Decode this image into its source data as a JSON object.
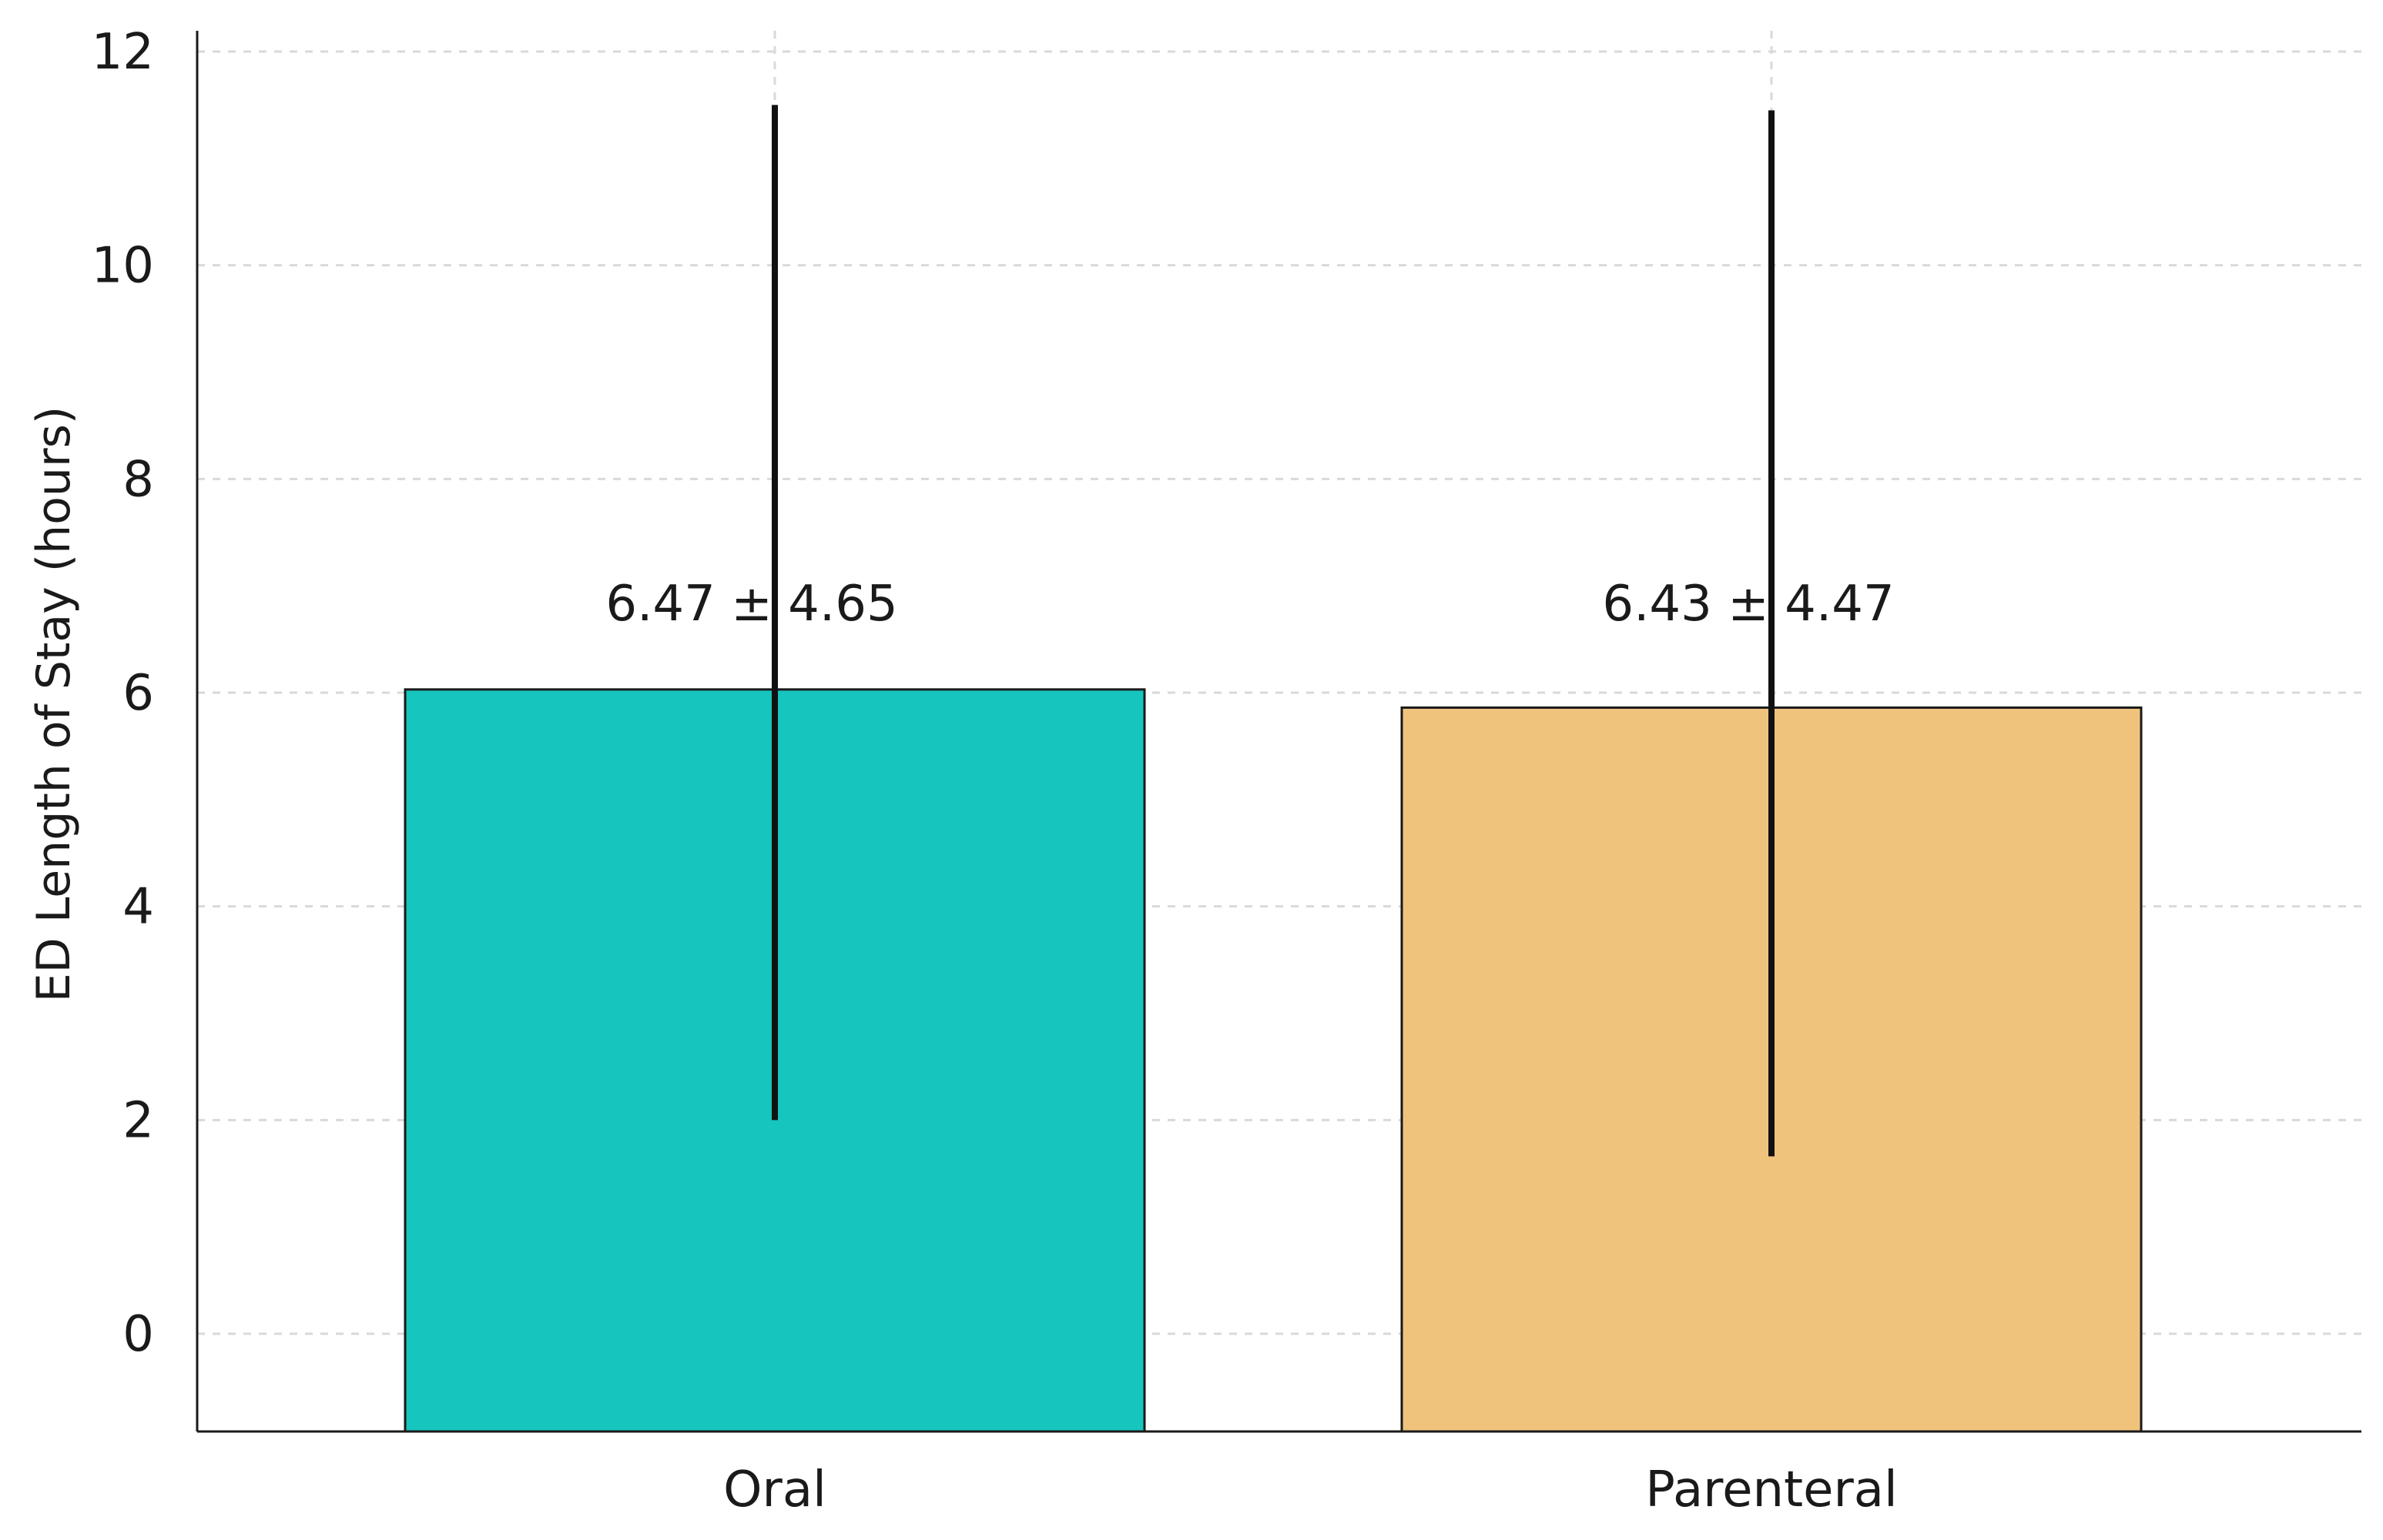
{
  "chart_data": {
    "type": "bar",
    "categories": [
      "Oral",
      "Parenteral"
    ],
    "values": [
      6.03,
      5.86
    ],
    "error_low": [
      2.0,
      1.66
    ],
    "error_high": [
      11.5,
      11.45
    ],
    "labels": [
      "6.47 ± 4.65",
      "6.43 ± 4.47"
    ],
    "colors": [
      "#16c5be",
      "#f0c37d"
    ],
    "title": "",
    "xlabel": "",
    "ylabel": "ED Length of Stay (hours)",
    "ylim": [
      -0.93,
      12.5
    ],
    "yticks": [
      0,
      2,
      4,
      6,
      8,
      10,
      12
    ],
    "grid": true
  }
}
